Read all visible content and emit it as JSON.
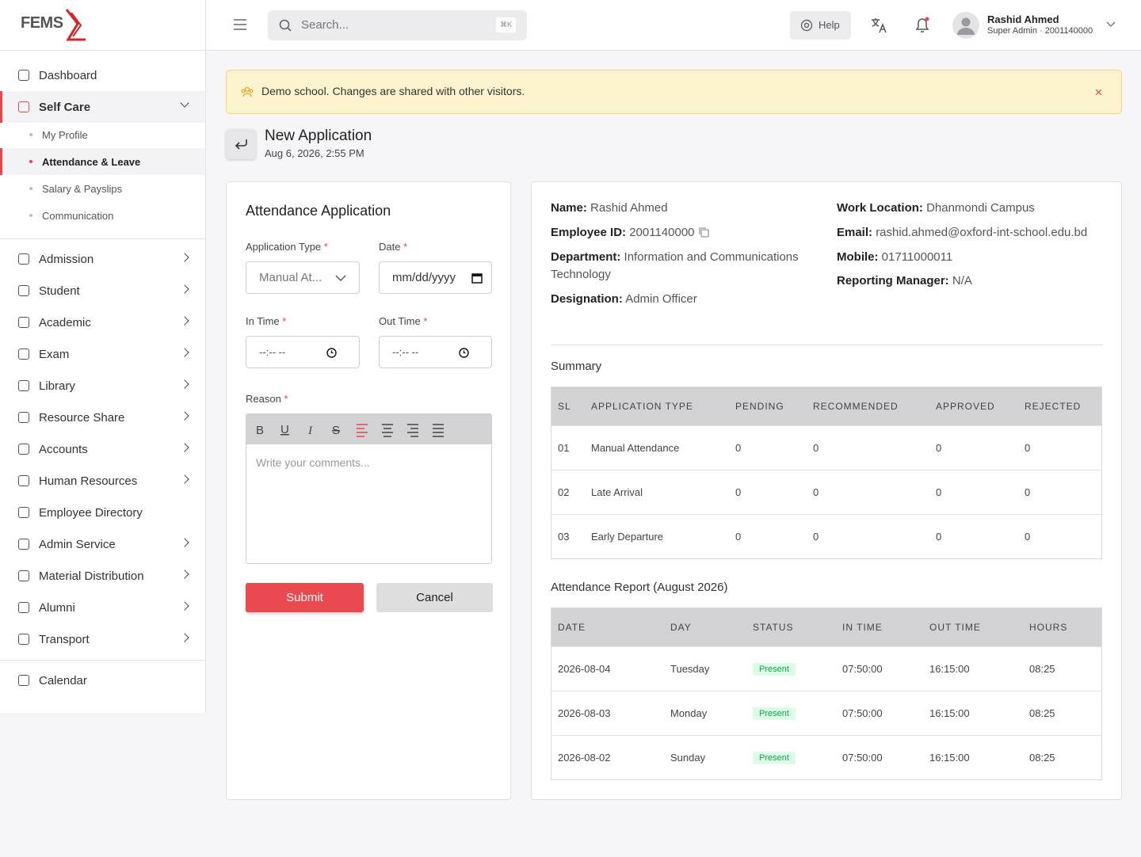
{
  "header": {
    "logo": "FEMS",
    "search_placeholder": "Search...",
    "search_shortcut": "⌘K",
    "help": "Help",
    "user_name": "Rashid Ahmed",
    "user_role": "Super Admin · 2001140000"
  },
  "sidebar": {
    "groups": [
      [
        {
          "label": "Dashboard",
          "submenu": false
        },
        {
          "label": "Self Care",
          "submenu": true,
          "open": true,
          "children": [
            {
              "label": "My Profile"
            },
            {
              "label": "Attendance & Leave",
              "active": true
            },
            {
              "label": "Salary & Payslips"
            },
            {
              "label": "Communication"
            }
          ]
        }
      ],
      [
        {
          "label": "Admission",
          "submenu": true
        },
        {
          "label": "Student",
          "submenu": true
        },
        {
          "label": "Academic",
          "submenu": true
        },
        {
          "label": "Exam",
          "submenu": true
        },
        {
          "label": "Library",
          "submenu": true
        },
        {
          "label": "Resource Share",
          "submenu": true
        },
        {
          "label": "Accounts",
          "submenu": true
        },
        {
          "label": "Human Resources",
          "submenu": true
        },
        {
          "label": "Employee Directory",
          "submenu": false
        },
        {
          "label": "Admin Service",
          "submenu": true
        },
        {
          "label": "Material Distribution",
          "submenu": true
        },
        {
          "label": "Alumni",
          "submenu": true
        },
        {
          "label": "Transport",
          "submenu": true
        }
      ],
      [
        {
          "label": "Calendar",
          "submenu": false
        }
      ]
    ]
  },
  "banner": "Demo school. Changes are shared with other visitors.",
  "page": {
    "title": "New Application",
    "date": "Aug 6, 2026, 2:55 PM"
  },
  "form": {
    "title": "Attendance Application",
    "application_type": "Application Type",
    "application_type_value": "Manual At...",
    "date": "Date",
    "date_placeholder": "mm/dd/yyyy",
    "in_time": "In Time",
    "out_time": "Out Time",
    "time_placeholder": "--:-- --",
    "reason": "Reason",
    "reason_placeholder": "Write your comments...",
    "submit": "Submit",
    "cancel": "Cancel"
  },
  "profile": {
    "left": [
      {
        "label": "Name:",
        "value": "Rashid Ahmed"
      },
      {
        "label": "Employee ID:",
        "value": "2001140000"
      },
      {
        "label": "Department:",
        "value": "Information and Communications Technology"
      },
      {
        "label": "Designation:",
        "value": "Admin Officer"
      }
    ],
    "right": [
      {
        "label": "Work Location:",
        "value": "Dhanmondi Campus"
      },
      {
        "label": "Email:",
        "value": "rashid.ahmed@oxford-int-school.edu.bd"
      },
      {
        "label": "Mobile:",
        "value": "01711000011"
      },
      {
        "label": "Reporting Manager:",
        "value": "N/A"
      }
    ]
  },
  "summary": {
    "title": "Summary",
    "columns": [
      "SL",
      "APPLICATION TYPE",
      "PENDING",
      "RECOMMENDED",
      "APPROVED",
      "REJECTED"
    ],
    "rows": [
      [
        "01",
        "Manual Attendance",
        "0",
        "0",
        "0",
        "0"
      ],
      [
        "02",
        "Late Arrival",
        "0",
        "0",
        "0",
        "0"
      ],
      [
        "03",
        "Early Departure",
        "0",
        "0",
        "0",
        "0"
      ]
    ]
  },
  "report": {
    "title": "Attendance Report (August 2026)",
    "columns": [
      "DATE",
      "DAY",
      "STATUS",
      "IN TIME",
      "OUT TIME",
      "HOURS"
    ],
    "rows": [
      [
        "2026-08-04",
        "Tuesday",
        "Present",
        "07:50:00",
        "16:15:00",
        "08:25"
      ],
      [
        "2026-08-03",
        "Monday",
        "Present",
        "07:50:00",
        "16:15:00",
        "08:25"
      ],
      [
        "2026-08-02",
        "Sunday",
        "Present",
        "07:50:00",
        "16:15:00",
        "08:25"
      ]
    ]
  }
}
